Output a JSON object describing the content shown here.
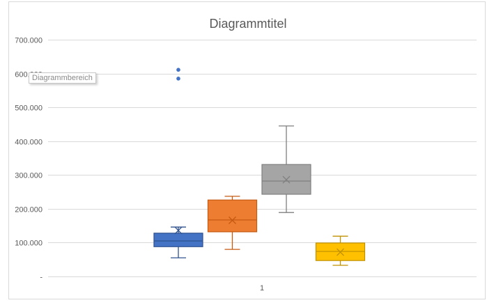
{
  "chart_data": {
    "type": "box",
    "title": "Diagrammtitel",
    "xlabel": "",
    "ylabel": "",
    "categories": [
      "1"
    ],
    "ylim": [
      0,
      700000
    ],
    "yticks": [
      0,
      100000,
      200000,
      300000,
      400000,
      500000,
      600000,
      700000
    ],
    "ytick_labels": [
      "-",
      "100.000",
      "200.000",
      "300.000",
      "400.000",
      "500.000",
      "600.000",
      "700.000"
    ],
    "grid": true,
    "legend": "none",
    "series": [
      {
        "color": "#4472C4",
        "edge": "#2F528F",
        "min": 55000,
        "q1": 88000,
        "median": 105000,
        "q3": 128000,
        "max": 146000,
        "mean": 136000,
        "outliers": [
          585000,
          611000
        ]
      },
      {
        "color": "#ED7D31",
        "edge": "#C55A11",
        "min": 80000,
        "q1": 132000,
        "median": 167000,
        "q3": 226000,
        "max": 237000,
        "mean": 166000,
        "outliers": []
      },
      {
        "color": "#A5A5A5",
        "edge": "#7F7F7F",
        "min": 189000,
        "q1": 243000,
        "median": 282000,
        "q3": 331000,
        "max": 445000,
        "mean": 286000,
        "outliers": []
      },
      {
        "color": "#FFC000",
        "edge": "#BF9000",
        "min": 33000,
        "q1": 47000,
        "median": 74000,
        "q3": 99000,
        "max": 119000,
        "mean": 72000,
        "outliers": []
      }
    ]
  },
  "tooltip": "Diagrammbereich"
}
